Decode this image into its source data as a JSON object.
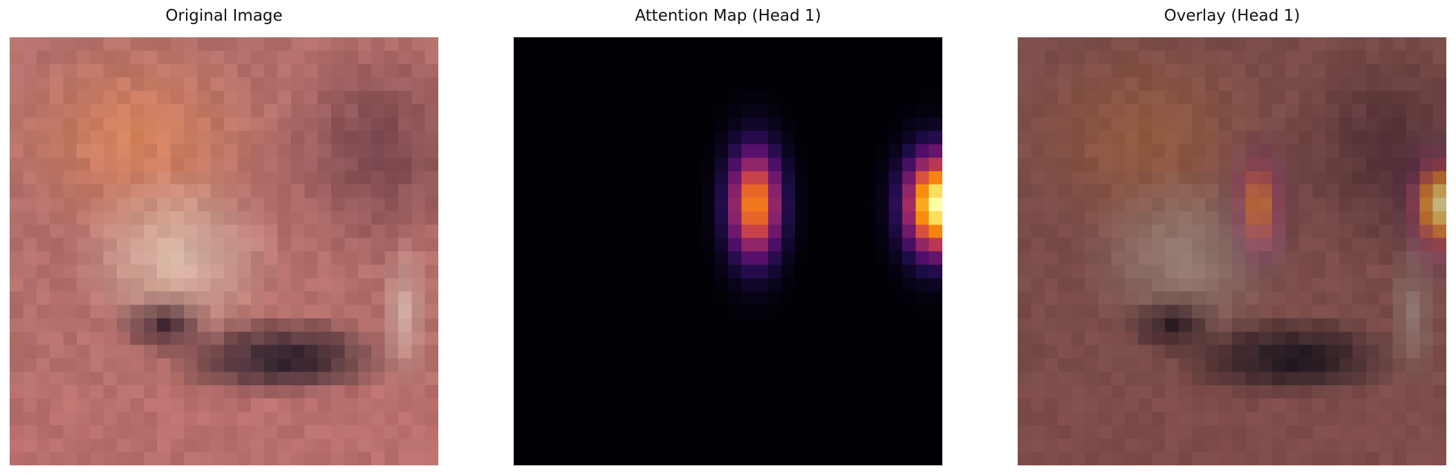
{
  "panels": [
    {
      "title": "Original Image"
    },
    {
      "title": "Attention Map (Head 1)"
    },
    {
      "title": "Overlay (Head 1)"
    }
  ],
  "image": {
    "grid": 32,
    "colormap": "inferno"
  }
}
